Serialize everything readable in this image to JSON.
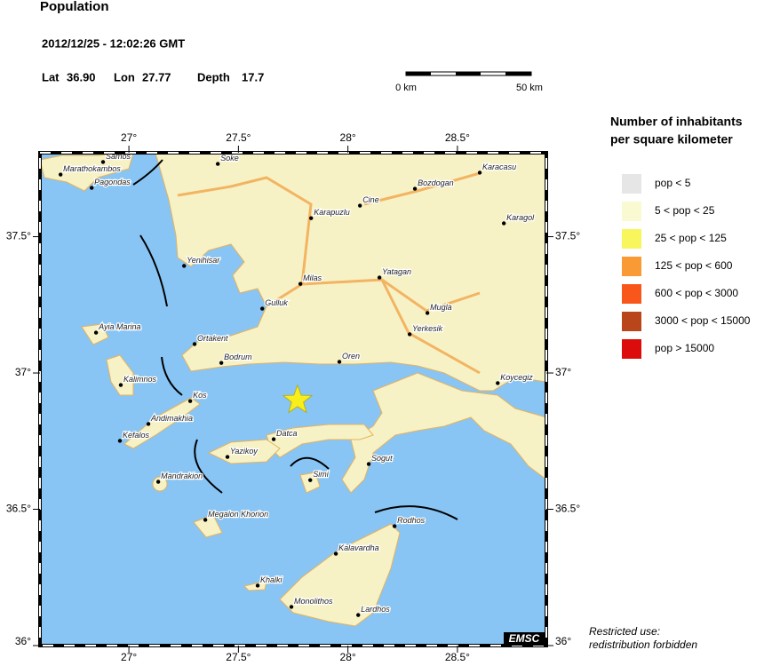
{
  "header": {
    "title": "Population",
    "datetime": "2012/12/25 - 12:02:26 GMT"
  },
  "epicenter": {
    "lat_label": "Lat",
    "lat": {
      "value": 36.9,
      "label": "36.90"
    },
    "lon_label": "Lon",
    "lon": {
      "value": 27.77,
      "label": "27.77"
    },
    "depth_label": "Depth",
    "depth": 17.7
  },
  "scale_bar": {
    "start_label": "0 km",
    "end_label": "50 km"
  },
  "map": {
    "lonlim": [
      26.594,
      28.906
    ],
    "latlim": [
      36.0,
      37.808
    ],
    "lon_ticks": [
      {
        "value": 27,
        "label": "27°"
      },
      {
        "value": 27.5,
        "label": "27.5°"
      },
      {
        "value": 28,
        "label": "28°"
      },
      {
        "value": 28.5,
        "label": "28.5°"
      }
    ],
    "lat_ticks": [
      {
        "value": 37.5,
        "label": "37.5°"
      },
      {
        "value": 37,
        "label": "37°"
      },
      {
        "value": 36.5,
        "label": "36.5°"
      },
      {
        "value": 36,
        "label": "36°"
      }
    ],
    "credit": "EMSC"
  },
  "towns": [
    {
      "name": "Marathokambos",
      "lon": 26.688,
      "lat": 37.728
    },
    {
      "name": "Samos",
      "lon": 26.882,
      "lat": 37.774
    },
    {
      "name": "Pagondas",
      "lon": 26.83,
      "lat": 37.679
    },
    {
      "name": "Soke",
      "lon": 27.406,
      "lat": 37.767
    },
    {
      "name": "Karacasu",
      "lon": 28.602,
      "lat": 37.735
    },
    {
      "name": "Bozdogan",
      "lon": 28.306,
      "lat": 37.676
    },
    {
      "name": "Cine",
      "lon": 28.055,
      "lat": 37.614
    },
    {
      "name": "Karapuzlu",
      "lon": 27.832,
      "lat": 37.568
    },
    {
      "name": "Karagol",
      "lon": 28.712,
      "lat": 37.549
    },
    {
      "name": "Yenihisar",
      "lon": 27.252,
      "lat": 37.393
    },
    {
      "name": "Milas",
      "lon": 27.783,
      "lat": 37.327
    },
    {
      "name": "Yatagan",
      "lon": 28.144,
      "lat": 37.35
    },
    {
      "name": "Gulluk",
      "lon": 27.609,
      "lat": 37.236
    },
    {
      "name": "Mugla",
      "lon": 28.363,
      "lat": 37.22
    },
    {
      "name": "Ayia Marina",
      "lon": 26.85,
      "lat": 37.148
    },
    {
      "name": "Ortakent",
      "lon": 27.3,
      "lat": 37.106
    },
    {
      "name": "Yerkesik",
      "lon": 28.282,
      "lat": 37.142
    },
    {
      "name": "Bodrum",
      "lon": 27.422,
      "lat": 37.037
    },
    {
      "name": "Oren",
      "lon": 27.961,
      "lat": 37.041
    },
    {
      "name": "Kalimnos",
      "lon": 26.963,
      "lat": 36.956
    },
    {
      "name": "Koycegiz",
      "lon": 28.684,
      "lat": 36.963
    },
    {
      "name": "Kos",
      "lon": 27.28,
      "lat": 36.897
    },
    {
      "name": "Andimakhia",
      "lon": 27.089,
      "lat": 36.813
    },
    {
      "name": "Kefalos",
      "lon": 26.959,
      "lat": 36.751
    },
    {
      "name": "Datca",
      "lon": 27.661,
      "lat": 36.757
    },
    {
      "name": "Yazikoy",
      "lon": 27.45,
      "lat": 36.692
    },
    {
      "name": "Sogut",
      "lon": 28.095,
      "lat": 36.666
    },
    {
      "name": "Mandrakion",
      "lon": 27.134,
      "lat": 36.601
    },
    {
      "name": "Simi",
      "lon": 27.828,
      "lat": 36.607
    },
    {
      "name": "Megalon Khorion",
      "lon": 27.349,
      "lat": 36.461
    },
    {
      "name": "Rodhos",
      "lon": 28.213,
      "lat": 36.438
    },
    {
      "name": "Kalavardha",
      "lon": 27.945,
      "lat": 36.337
    },
    {
      "name": "Khalki",
      "lon": 27.588,
      "lat": 36.22
    },
    {
      "name": "Monolithos",
      "lon": 27.742,
      "lat": 36.142
    },
    {
      "name": "Lardhos",
      "lon": 28.047,
      "lat": 36.112
    }
  ],
  "legend": {
    "title_line1": "Number of inhabitants",
    "title_line2": "per square kilometer",
    "items": [
      {
        "label": "pop < 5",
        "color": "#e6e6e6"
      },
      {
        "label": "5 < pop < 25",
        "color": "#fafad2"
      },
      {
        "label": "25 < pop < 125",
        "color": "#f8f65c"
      },
      {
        "label": "125 < pop < 600",
        "color": "#f99a35"
      },
      {
        "label": "600 < pop < 3000",
        "color": "#f9561c"
      },
      {
        "label": "3000 < pop < 15000",
        "color": "#b8461a"
      },
      {
        "label": "pop > 15000",
        "color": "#dc0c0c"
      }
    ]
  },
  "notice": {
    "line1": "Restricted use:",
    "line2": "redistribution forbidden"
  }
}
